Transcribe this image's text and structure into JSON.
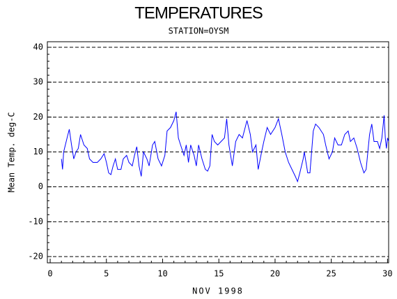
{
  "chart_data": {
    "type": "line",
    "title": "TEMPERATURES",
    "subtitle": "STATION=OYSM",
    "x_label": "NOV 1998",
    "y_label": "Mean Temp. deg-C",
    "xlim": [
      -0.25,
      30.1
    ],
    "xticks": [
      0,
      5,
      10,
      15,
      20,
      25,
      30
    ],
    "ylim": [
      -21.8,
      41.6
    ],
    "yticks": [
      -20,
      -10,
      0,
      10,
      20,
      30,
      40
    ],
    "grid": true,
    "series": [
      {
        "name": "Mean Temp",
        "color": "#0000ff",
        "x": [
          1.0,
          1.1,
          1.2,
          1.5,
          1.7,
          1.9,
          2.1,
          2.3,
          2.5,
          2.7,
          3.0,
          3.3,
          3.5,
          3.8,
          4.2,
          4.5,
          4.8,
          5.0,
          5.2,
          5.4,
          5.6,
          5.8,
          6.0,
          6.3,
          6.5,
          6.8,
          7.0,
          7.3,
          7.5,
          7.7,
          7.9,
          8.1,
          8.3,
          8.6,
          8.8,
          9.1,
          9.3,
          9.6,
          9.9,
          10.2,
          10.4,
          10.7,
          11.0,
          11.2,
          11.4,
          11.6,
          11.9,
          12.1,
          12.3,
          12.5,
          12.8,
          13.0,
          13.2,
          13.5,
          13.8,
          14.0,
          14.2,
          14.4,
          14.6,
          14.9,
          15.2,
          15.5,
          15.7,
          15.9,
          16.2,
          16.5,
          16.8,
          17.1,
          17.5,
          17.8,
          18.0,
          18.3,
          18.5,
          18.8,
          19.0,
          19.3,
          19.6,
          20.0,
          20.3,
          20.6,
          20.9,
          21.2,
          21.5,
          21.8,
          22.0,
          22.2,
          22.5,
          22.6,
          22.9,
          23.1,
          23.4,
          23.6,
          23.9,
          24.1,
          24.3,
          24.5,
          24.8,
          25.1,
          25.3,
          25.6,
          25.9,
          26.2,
          26.5,
          26.7,
          27.0,
          27.3,
          27.6,
          27.9,
          28.1,
          28.4,
          28.6,
          28.8,
          29.1,
          29.3,
          29.5,
          29.7,
          29.8,
          29.9,
          30.0,
          30.1
        ],
        "values": [
          8,
          5,
          10,
          14,
          16.5,
          12,
          8,
          10,
          11,
          15,
          12,
          11,
          8,
          7,
          7,
          8,
          9.5,
          7,
          4,
          3.5,
          6,
          8,
          5,
          5,
          8,
          9,
          7,
          6,
          9,
          11.5,
          6,
          3,
          10,
          8,
          6,
          12,
          13,
          8,
          6,
          9,
          16,
          17,
          19,
          21.5,
          14,
          12,
          9,
          12,
          7,
          12,
          9,
          6,
          12,
          8,
          5,
          4.5,
          6,
          15,
          13,
          12,
          13,
          14,
          19.5,
          12,
          6,
          13,
          15,
          14,
          19,
          15,
          10,
          12,
          5,
          10,
          13,
          17,
          15,
          17,
          19.5,
          15,
          10,
          7,
          5,
          3,
          1.5,
          4,
          8,
          10,
          4,
          4,
          16,
          18,
          17,
          16,
          15,
          12,
          8,
          10,
          14,
          12,
          12,
          15,
          16,
          13,
          14,
          11,
          7,
          4,
          5,
          15,
          18,
          13,
          13,
          11,
          14,
          20.5,
          14,
          11,
          14,
          13
        ]
      }
    ]
  }
}
